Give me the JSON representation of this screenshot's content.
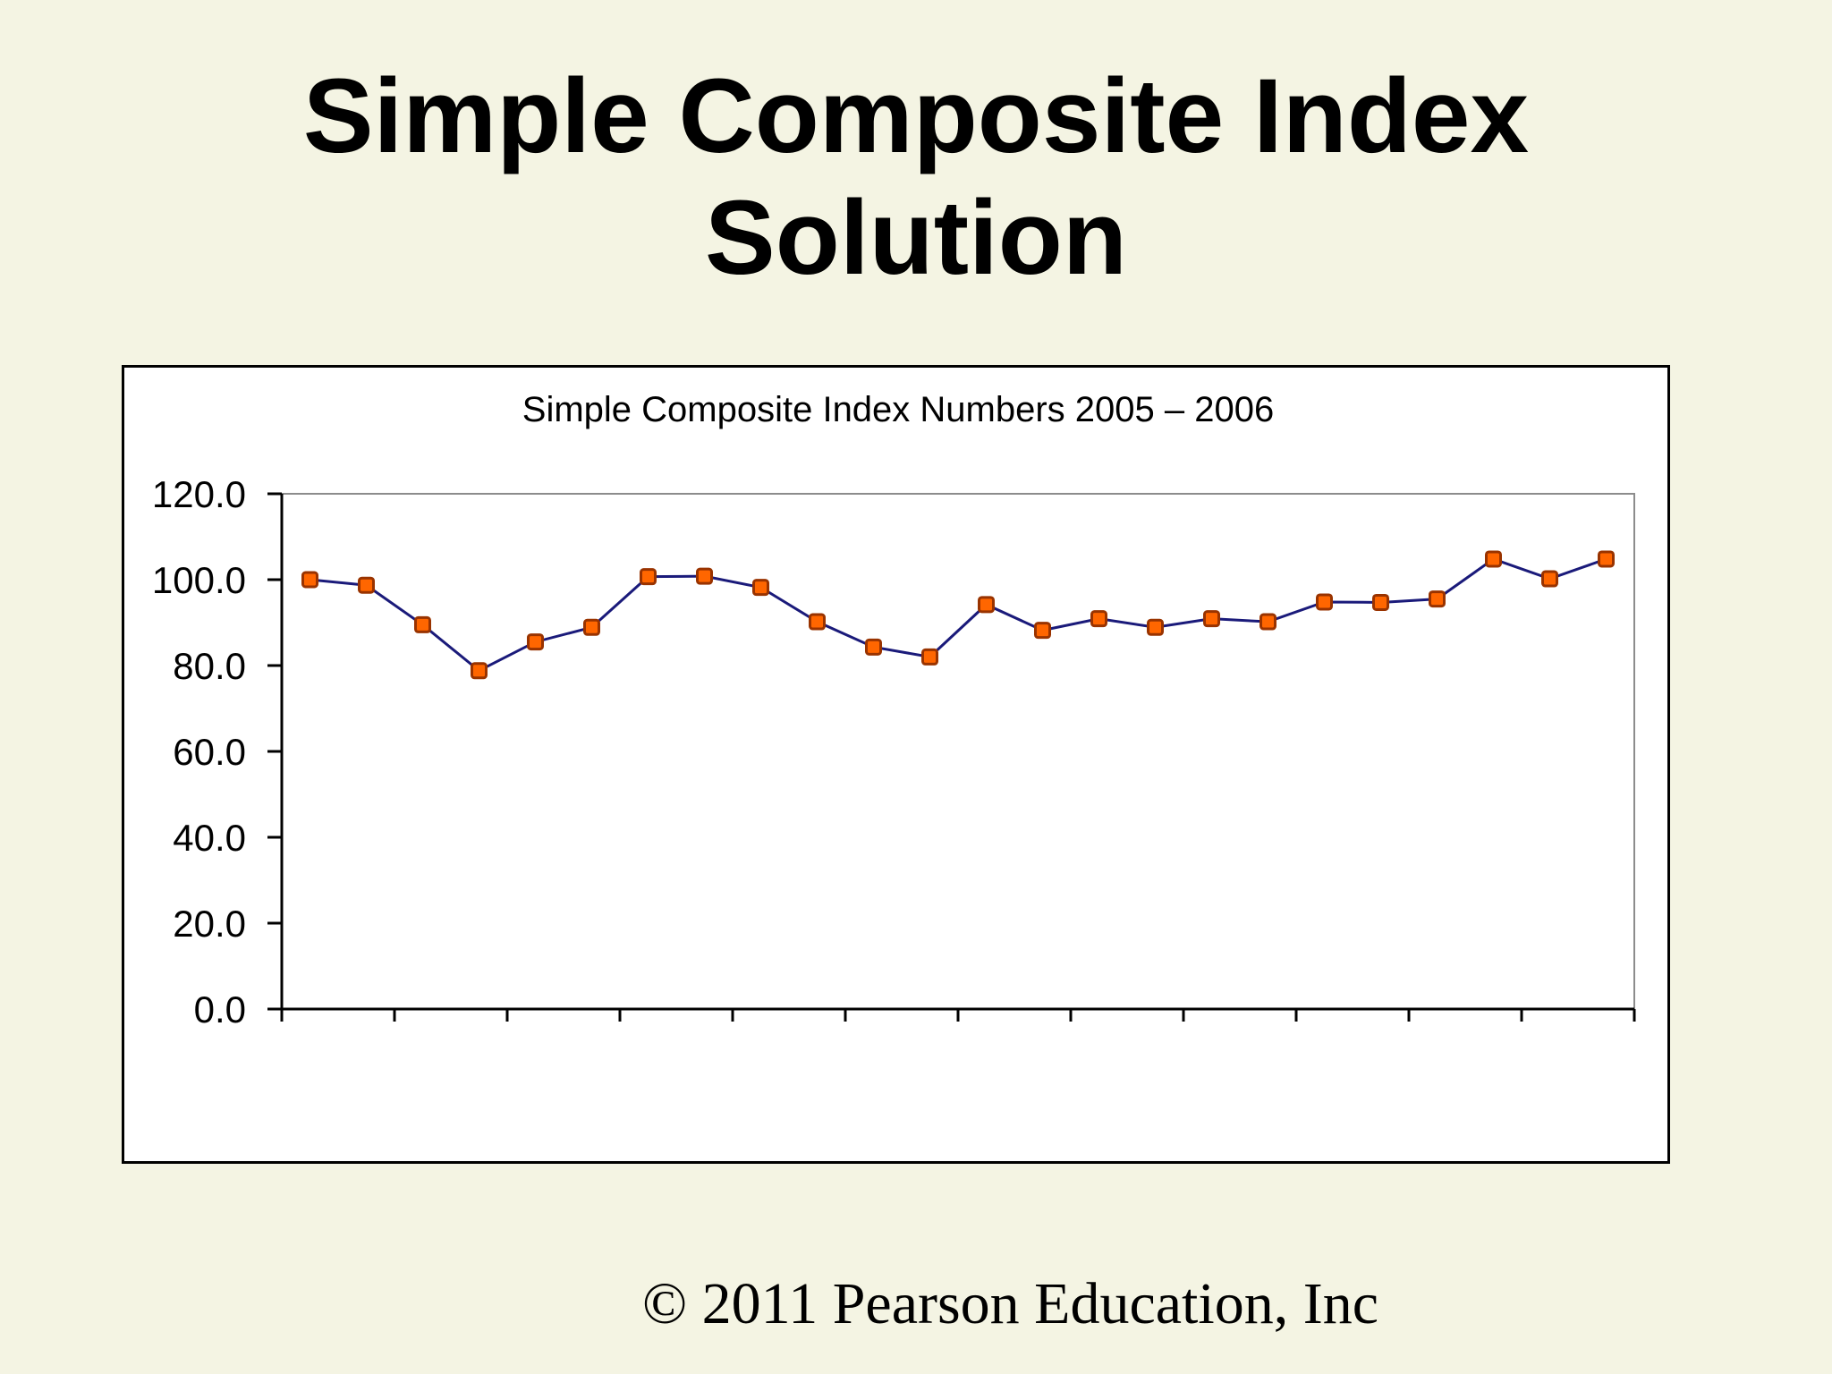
{
  "slide": {
    "title_line1": "Simple Composite Index",
    "title_line2": "Solution",
    "footer": "© 2011 Pearson Education, Inc"
  },
  "chart_data": {
    "type": "line",
    "title": "Simple Composite Index Numbers 2005 – 2006",
    "xlabel": "",
    "ylabel": "",
    "ylim": [
      0,
      120
    ],
    "y_ticks": [
      "0.0",
      "20.0",
      "40.0",
      "60.0",
      "80.0",
      "100.0",
      "120.0"
    ],
    "x_points": 24,
    "grid": false,
    "legend": "none",
    "line_color": "#1a1a7a",
    "marker_color": "#ff6600",
    "marker_edge_color": "#993300",
    "series": [
      {
        "values": [
          100.0,
          98.7,
          89.5,
          78.8,
          85.5,
          88.9,
          100.7,
          100.8,
          98.2,
          90.2,
          84.3,
          82.0,
          94.2,
          88.2,
          90.9,
          88.9,
          90.9,
          90.2,
          94.8,
          94.7,
          95.5,
          104.8,
          100.2,
          104.8
        ]
      }
    ]
  }
}
